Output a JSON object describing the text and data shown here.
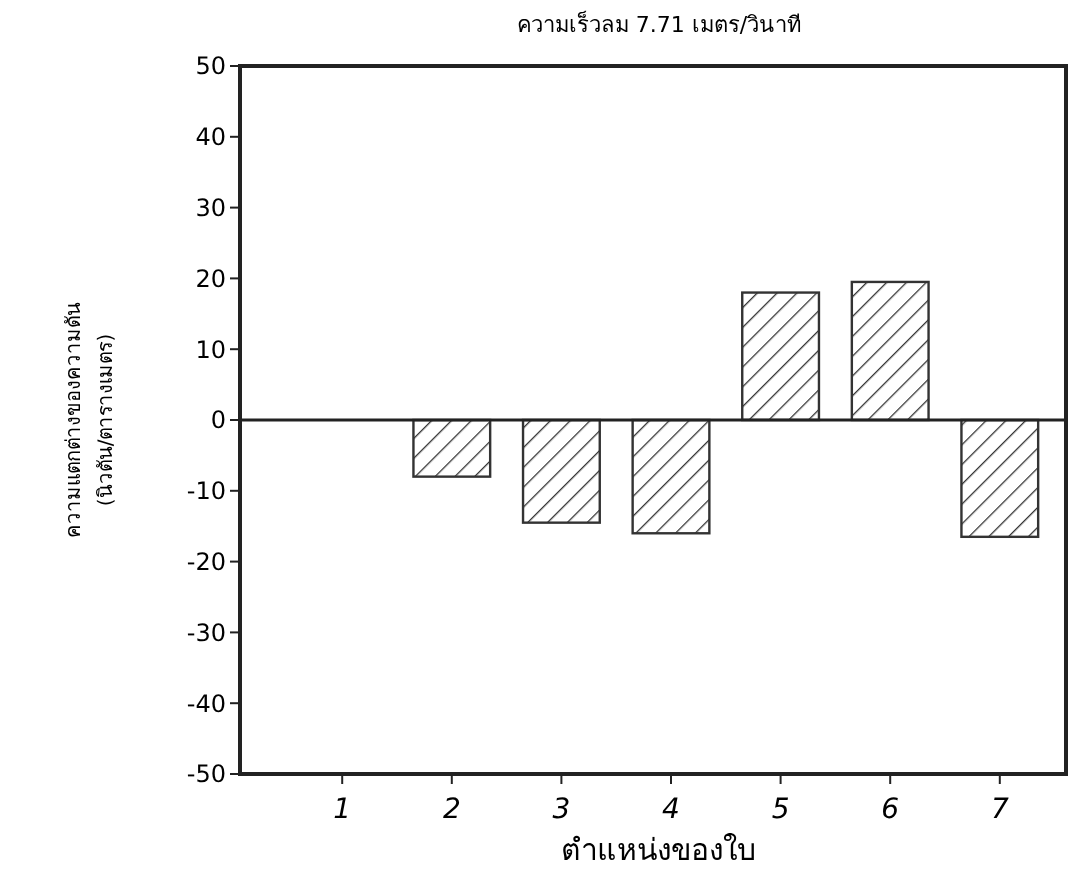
{
  "chart_data": {
    "type": "bar",
    "title": "ความเร็วลม 7.71 เมตร/วินาที",
    "xlabel": "ตำแหน่งของใบ",
    "ylabel": "ความแตกต่างของความดัน (นิวตัน/ตารางเมตร)",
    "categories": [
      "1",
      "2",
      "3",
      "4",
      "5",
      "6",
      "7"
    ],
    "values": [
      null,
      -8,
      -14.5,
      -16,
      18,
      19.5,
      -16.5
    ],
    "color": "#333333",
    "ylim": [
      -50,
      50
    ],
    "yticks": [
      -50,
      -40,
      -30,
      -20,
      -10,
      0,
      10,
      20,
      30,
      40,
      50
    ]
  }
}
